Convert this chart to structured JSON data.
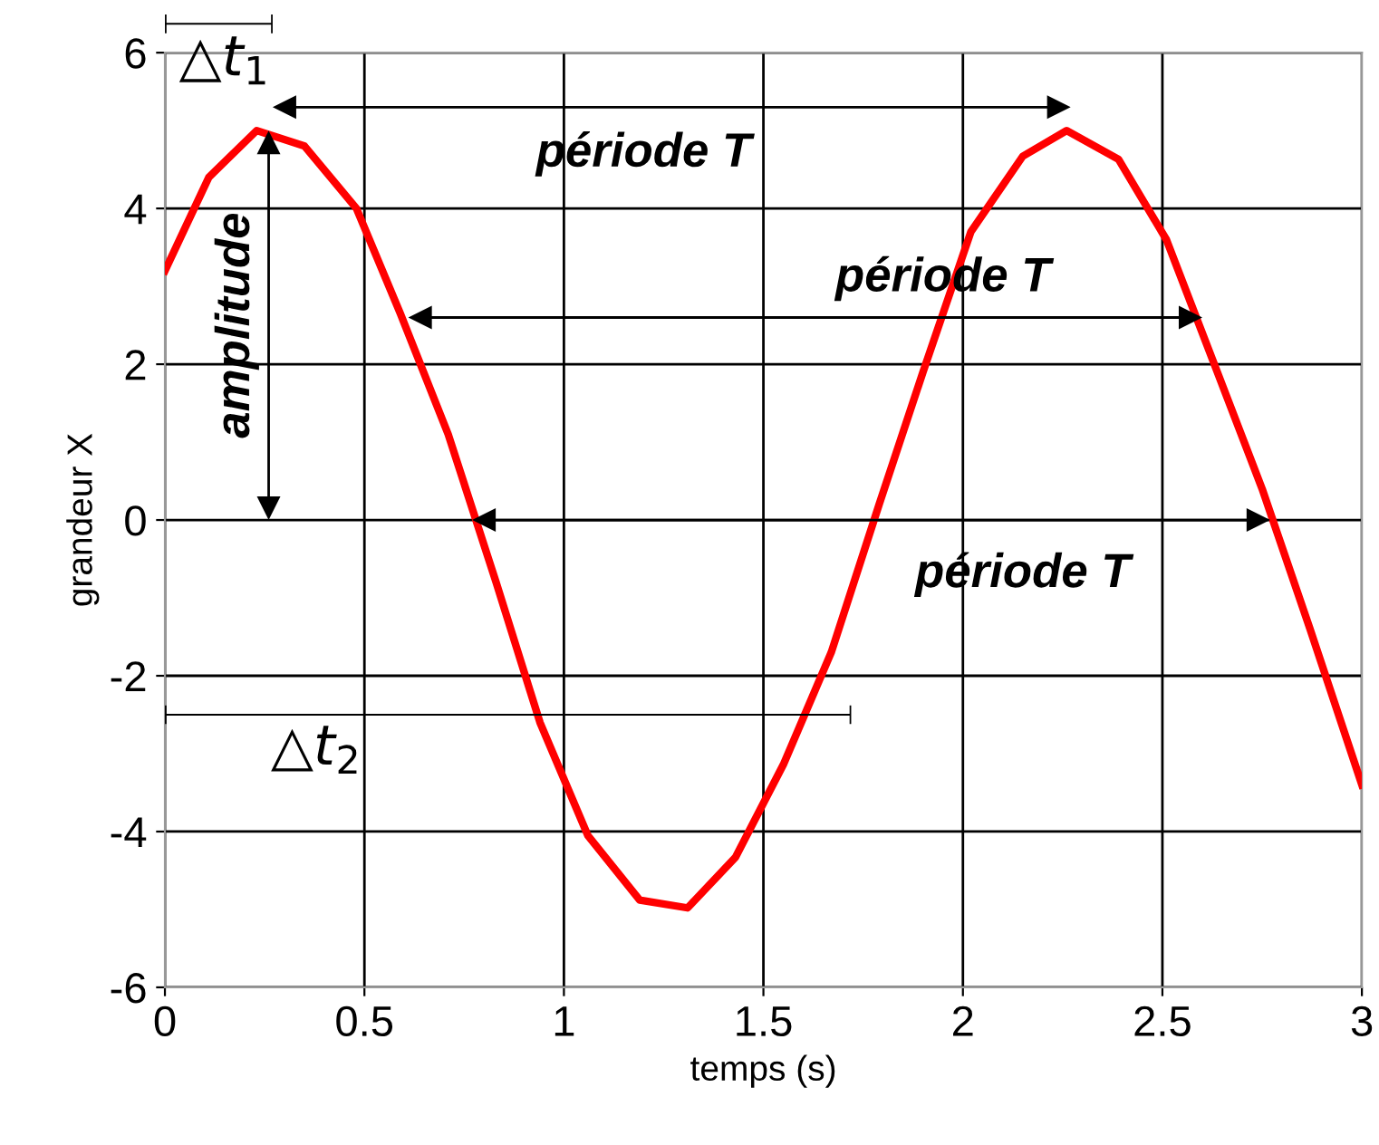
{
  "chart_data": {
    "type": "line",
    "xlabel": "temps (s)",
    "ylabel": "grandeur X",
    "x": [
      0,
      0.11,
      0.23,
      0.35,
      0.48,
      0.59,
      0.71,
      0.83,
      0.94,
      1.06,
      1.19,
      1.31,
      1.43,
      1.55,
      1.67,
      1.79,
      1.9,
      2.02,
      2.15,
      2.26,
      2.39,
      2.51,
      2.63,
      2.75,
      2.87,
      3.0
    ],
    "series": [
      {
        "color": "#ff0000",
        "values": [
          3.2,
          4.4,
          5.0,
          4.8,
          4.0,
          2.65,
          1.1,
          -0.8,
          -2.6,
          -4.05,
          -4.88,
          -4.98,
          -4.33,
          -3.14,
          -1.7,
          0.2,
          1.9,
          3.7,
          4.67,
          5.0,
          4.63,
          3.6,
          2.0,
          0.4,
          -1.4,
          -3.4
        ]
      }
    ],
    "xlim": [
      0,
      3
    ],
    "ylim": [
      -6,
      6
    ],
    "xticks": [
      0,
      0.5,
      1,
      1.5,
      2,
      2.5,
      3
    ],
    "yticks": [
      -6,
      -4,
      -2,
      0,
      2,
      4,
      6
    ],
    "grid": true,
    "marker": "none",
    "line_style": "solid",
    "annotations": [
      "△t$_{1}$",
      "△t$_{2}$",
      "période T",
      "période T",
      "période T",
      "amplitude"
    ]
  }
}
